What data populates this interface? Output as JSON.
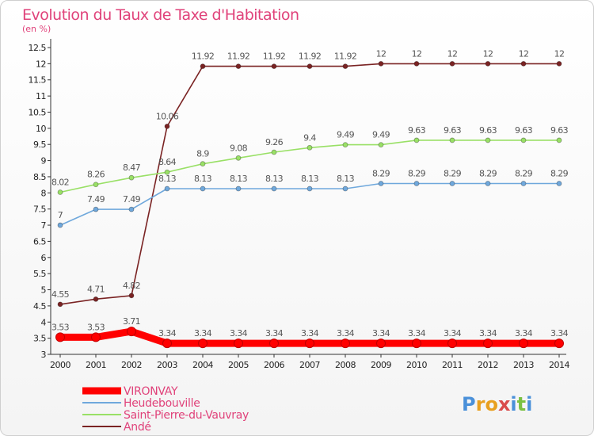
{
  "chart_data": {
    "type": "line",
    "title": "Evolution du Taux de Taxe d'Habitation",
    "ylabel": "(en %)",
    "xlabel": "",
    "x": [
      "2000",
      "2001",
      "2002",
      "2003",
      "2004",
      "2005",
      "2006",
      "2007",
      "2008",
      "2009",
      "2010",
      "2011",
      "2012",
      "2013",
      "2014"
    ],
    "ylim": [
      3,
      12.5
    ],
    "yticks": [
      3,
      3.5,
      4,
      4.5,
      5,
      5.5,
      6,
      6.5,
      7,
      7.5,
      8,
      8.5,
      9,
      9.5,
      10,
      10.5,
      11,
      11.5,
      12,
      12.5
    ],
    "ytick_labels": [
      "3",
      "3.5",
      "4",
      "4.5",
      "5",
      "5.5",
      "6",
      "6.5",
      "7",
      "7.5",
      "8",
      "8.5",
      "9",
      "9.5",
      "10",
      "10.5",
      "11",
      "11.5",
      "12",
      "12.5"
    ],
    "grid": false,
    "legend_position": "bottom-left",
    "series": [
      {
        "name": "VIRONVAY",
        "color": "#ff0000",
        "values": [
          3.53,
          3.53,
          3.71,
          3.34,
          3.34,
          3.34,
          3.34,
          3.34,
          3.34,
          3.34,
          3.34,
          3.34,
          3.34,
          3.34,
          3.34
        ],
        "labels": [
          "3.53",
          "3.53",
          "3.71",
          "3.34",
          "3.34",
          "3.34",
          "3.34",
          "3.34",
          "3.34",
          "3.34",
          "3.34",
          "3.34",
          "3.34",
          "3.34",
          "3.34"
        ]
      },
      {
        "name": "Heudebouville",
        "color": "#6fa8dc",
        "values": [
          7,
          7.49,
          7.49,
          8.13,
          8.13,
          8.13,
          8.13,
          8.13,
          8.13,
          8.29,
          8.29,
          8.29,
          8.29,
          8.29,
          8.29
        ],
        "labels": [
          "7",
          "7.49",
          "7.49",
          "8.13",
          "8.13",
          "8.13",
          "8.13",
          "8.13",
          "8.13",
          "8.29",
          "8.29",
          "8.29",
          "8.29",
          "8.29",
          "8.29"
        ]
      },
      {
        "name": "Saint-Pierre-du-Vauvray",
        "color": "#99e066",
        "values": [
          8.02,
          8.26,
          8.47,
          8.64,
          8.9,
          9.08,
          9.26,
          9.4,
          9.49,
          9.49,
          9.63,
          9.63,
          9.63,
          9.63,
          9.63
        ],
        "labels": [
          "8.02",
          "8.26",
          "8.47",
          "8.64",
          "8.9",
          "9.08",
          "9.26",
          "9.4",
          "9.49",
          "9.49",
          "9.63",
          "9.63",
          "9.63",
          "9.63",
          "9.63"
        ]
      },
      {
        "name": "Andé",
        "color": "#7a2323",
        "values": [
          4.55,
          4.71,
          4.82,
          10.06,
          11.92,
          11.92,
          11.92,
          11.92,
          11.92,
          12,
          12,
          12,
          12,
          12,
          12
        ],
        "labels": [
          "4.55",
          "4.71",
          "4.82",
          "10.06",
          "11.92",
          "11.92",
          "11.92",
          "11.92",
          "11.92",
          "12",
          "12",
          "12",
          "12",
          "12",
          "12"
        ]
      }
    ]
  },
  "logo": {
    "text": "Proxiti"
  }
}
